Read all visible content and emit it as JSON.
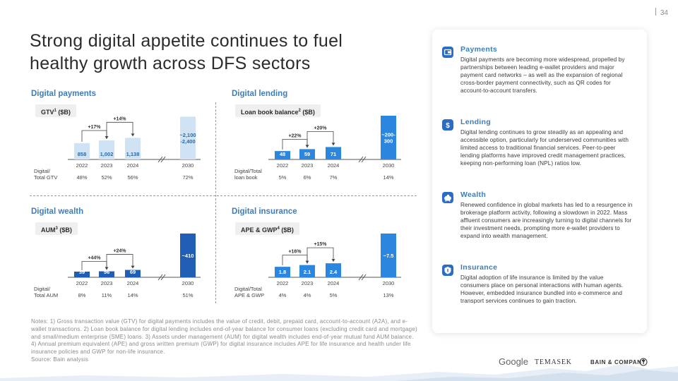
{
  "page_number": "34",
  "title": "Strong digital appetite continues to fuel healthy growth across DFS sectors",
  "sections": {
    "payments": {
      "title": "Digital payments",
      "pill": "GTV",
      "pill_sup": "1",
      "pill_suffix": " ($B)"
    },
    "lending": {
      "title": "Digital lending",
      "pill": "Loan book balance",
      "pill_sup": "2",
      "pill_suffix": " ($B)"
    },
    "wealth": {
      "title": "Digital wealth",
      "pill": "AUM",
      "pill_sup": "3",
      "pill_suffix": " ($B)"
    },
    "insurance": {
      "title": "Digital insurance",
      "pill": "APE & GWP",
      "pill_sup": "4",
      "pill_suffix": " ($B)"
    }
  },
  "chart_data": [
    {
      "type": "bar",
      "id": "payments",
      "categories": [
        "2022",
        "2023",
        "2024",
        "2030"
      ],
      "values": [
        858,
        1002,
        1138,
        2250
      ],
      "value_labels": [
        "858",
        "1,002",
        "1,138",
        "~2,100\n-2,400"
      ],
      "growth": [
        "+17%",
        "+14%"
      ],
      "ratio_label": "Digital/\nTotal GTV",
      "ratios": [
        "48%",
        "52%",
        "56%",
        "72%"
      ],
      "color": "#cfe3f5",
      "label_color": "#2b6aa8",
      "ylim": [
        0,
        2300
      ]
    },
    {
      "type": "bar",
      "id": "lending",
      "categories": [
        "2022",
        "2023",
        "2024",
        "2030"
      ],
      "values": [
        48,
        59,
        71,
        250
      ],
      "value_labels": [
        "48",
        "59",
        "71",
        "~200-\n300"
      ],
      "growth": [
        "+22%",
        "+20%"
      ],
      "ratio_label": "Digital/Total\nloan book",
      "ratios": [
        "5%",
        "6%",
        "7%",
        "14%"
      ],
      "color": "#2b86e0",
      "label_color": "#ffffff",
      "ylim": [
        0,
        250
      ]
    },
    {
      "type": "bar",
      "id": "wealth",
      "categories": [
        "2022",
        "2023",
        "2024",
        "2030"
      ],
      "values": [
        39,
        56,
        69,
        410
      ],
      "value_labels": [
        "39",
        "56",
        "69",
        "~410"
      ],
      "growth": [
        "+44%",
        "+24%"
      ],
      "ratio_label": "Digital/\nTotal AUM",
      "ratios": [
        "8%",
        "11%",
        "14%",
        "51%"
      ],
      "color": "#1f5eb4",
      "label_color": "#ffffff",
      "ylim": [
        0,
        410
      ]
    },
    {
      "type": "bar",
      "id": "insurance",
      "categories": [
        "2022",
        "2023",
        "2024",
        "2030"
      ],
      "values": [
        1.8,
        2.1,
        2.4,
        7.5
      ],
      "value_labels": [
        "1.8",
        "2.1",
        "2.4",
        "~7.5"
      ],
      "growth": [
        "+16%",
        "+15%"
      ],
      "ratio_label": "Digital/Total\nAPE & GWP",
      "ratios": [
        "4%",
        "4%",
        "5%",
        "13%"
      ],
      "color": "#2b86e0",
      "label_color": "#ffffff",
      "ylim": [
        0,
        7.5
      ]
    }
  ],
  "notes": "Notes: 1) Gross transaction value (GTV) for digital payments includes the value of credit, debit, prepaid card, account-to-account (A2A), and e-wallet transactions. 2) Loan book balance for digital lending includes end-of-year balance for consumer loans (excluding credit card and mortgage) and small/medium enterprise (SME) loans. 3) Assets under management (AUM) for digital wealth includes end-of-year mutual fund AUM balance. 4) Annual premium equivalent (APE) and gross written premium (GWP) for digital insurance includes APE for life insurance and health under life insurance policies and GWP for non-life insurance.",
  "source": "Source: Bain analysis",
  "panel": [
    {
      "icon": "payments-icon",
      "title": "Payments",
      "body": "Digital payments are becoming more widespread, propelled by partnerships between leading e-wallet providers and major payment card networks – as well as the expansion of regional cross-border payment connectivity, such as QR codes for account-to-account transfers."
    },
    {
      "icon": "lending-icon",
      "title": "Lending",
      "body": "Digital lending continues to grow steadily as an appealing and accessible option, particularly for underserved communities with limited access to traditional financial services. Peer-to-peer lending platforms have improved credit management practices, keeping non-performing loan (NPL) ratios low."
    },
    {
      "icon": "wealth-icon",
      "title": "Wealth",
      "body": "Renewed confidence in global markets has led to a resurgence in brokerage platform activity, following a slowdown in 2022. Mass affluent consumers are increasingly turning to digital channels for their investment needs, prompting more e-wallet providers to expand into wealth management."
    },
    {
      "icon": "insurance-icon",
      "title": "Insurance",
      "body": "Digital adoption of life insurance is limited by the value consumers place on personal interactions with human agents. However, embedded insurance bundled into e-commerce and transport services continues to gain traction."
    }
  ],
  "logos": {
    "google": "Google",
    "temasek": "TEMASEK",
    "bain": "BAIN & COMPANY"
  },
  "colors": {
    "accent": "#3d7db8",
    "light_bar": "#cfe3f5",
    "mid_bar": "#2b86e0",
    "dark_bar": "#1f5eb4"
  }
}
